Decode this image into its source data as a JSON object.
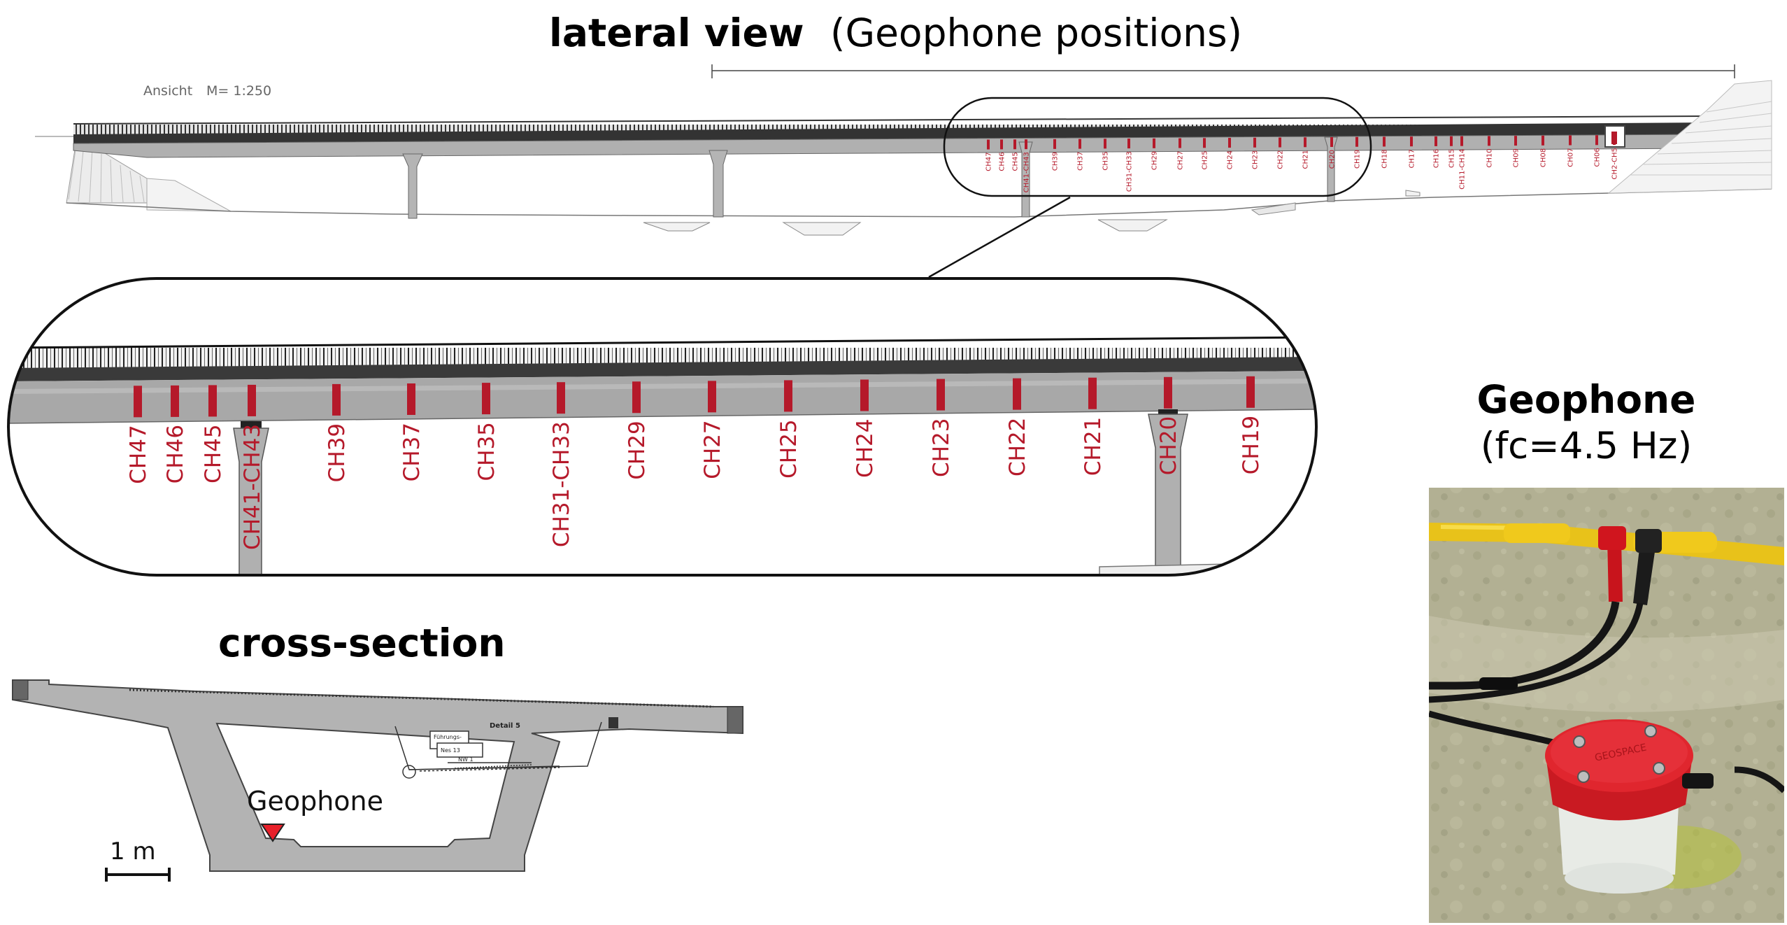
{
  "lateral": {
    "title_bold": "lateral view",
    "title_paren": "(Geophone positions)",
    "ansicht_label": "Ansicht",
    "scale_label": "M= 1:250",
    "overview_labels": [
      "CH47",
      "CH46",
      "CH45",
      "CH41-CH43",
      "CH39",
      "CH37",
      "CH35",
      "CH31-CH33",
      "CH29",
      "CH27",
      "CH25",
      "CH24",
      "CH23",
      "CH22",
      "CH21",
      "CH20",
      "CH19",
      "CH18",
      "CH17",
      "CH16",
      "CH15",
      "CH11-CH14",
      "CH10",
      "CH09",
      "CH08",
      "CH07",
      "CH06",
      "CH2-CH5"
    ]
  },
  "zoom": {
    "labels": [
      "CH47",
      "CH46",
      "CH45",
      "CH41-CH43",
      "CH39",
      "CH37",
      "CH35",
      "CH31-CH33",
      "CH29",
      "CH27",
      "CH25",
      "CH24",
      "CH23",
      "CH22",
      "CH21",
      "CH20",
      "CH19"
    ]
  },
  "cross_section": {
    "title": "cross-section",
    "geophone_label": "Geophone",
    "scale_label": "1 m",
    "drawing_notes": [
      "Detail 5",
      "Führungs-",
      "Nes 13",
      "NW 1"
    ]
  },
  "geophone_photo": {
    "title": "Geophone",
    "subtitle": "(fc=4.5 Hz)",
    "brand_text": "GEOSPACE"
  },
  "colors": {
    "sensor_red": "#b5192a",
    "deck_gray": "#a8a8a8",
    "deck_dark": "#2a2a2a",
    "marker_red": "#e8202a"
  }
}
